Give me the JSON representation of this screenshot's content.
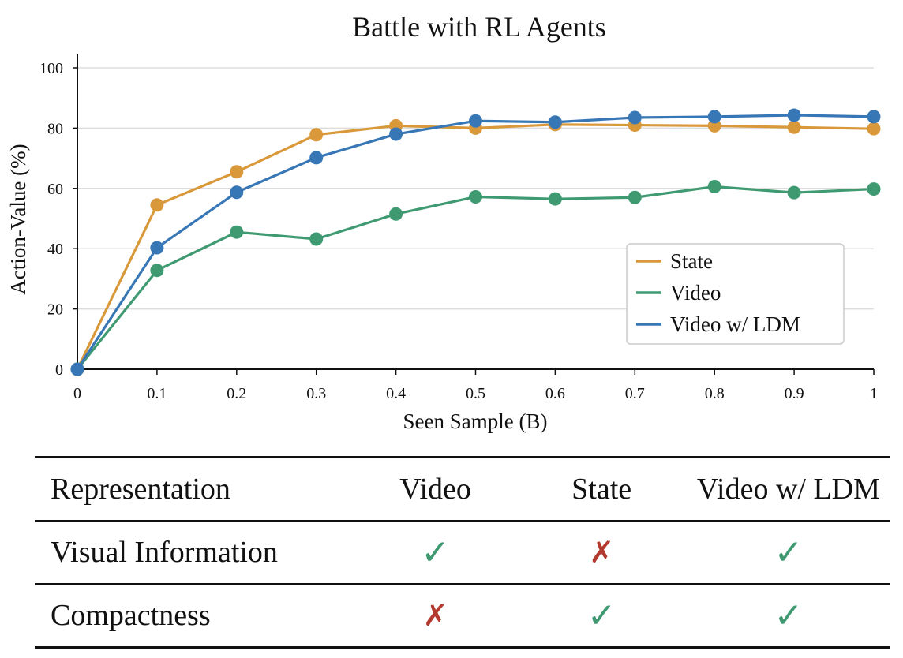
{
  "chart_data": {
    "type": "line",
    "title": "Battle with RL Agents",
    "xlabel": "Seen Sample (B)",
    "ylabel": "Action-Value (%)",
    "x": [
      0,
      0.1,
      0.2,
      0.3,
      0.4,
      0.5,
      0.6,
      0.7,
      0.8,
      0.9,
      1
    ],
    "x_tick_labels": [
      "0",
      "0.1",
      "0.2",
      "0.3",
      "0.4",
      "0.5",
      "0.6",
      "0.7",
      "0.8",
      "0.9",
      "1"
    ],
    "y_ticks": [
      "0",
      "20",
      "40",
      "60",
      "80",
      "100"
    ],
    "xlim": [
      0,
      1
    ],
    "ylim": [
      0,
      100
    ],
    "grid": "horizontal",
    "legend_position": "right",
    "series": [
      {
        "name": "State",
        "color": "#d9993a",
        "values": [
          0,
          54.5,
          65.5,
          77.8,
          80.8,
          80.0,
          81.2,
          81.0,
          80.8,
          80.3,
          79.8
        ]
      },
      {
        "name": "Video",
        "color": "#3f9a72",
        "values": [
          0,
          32.8,
          45.5,
          43.2,
          51.5,
          57.2,
          56.5,
          57.0,
          60.6,
          58.6,
          59.8
        ]
      },
      {
        "name": "Video w/ LDM",
        "color": "#3877b6",
        "values": [
          0,
          40.3,
          58.7,
          70.2,
          78.0,
          82.4,
          82.0,
          83.5,
          83.8,
          84.3,
          83.8
        ]
      }
    ]
  },
  "table": {
    "headers": [
      "Representation",
      "Video",
      "State",
      "Video w/ LDM"
    ],
    "rows": [
      {
        "label": "Visual Information",
        "cells": [
          "✓",
          "✗",
          "✓"
        ]
      },
      {
        "label": "Compactness",
        "cells": [
          "✗",
          "✓",
          "✓"
        ]
      }
    ]
  }
}
